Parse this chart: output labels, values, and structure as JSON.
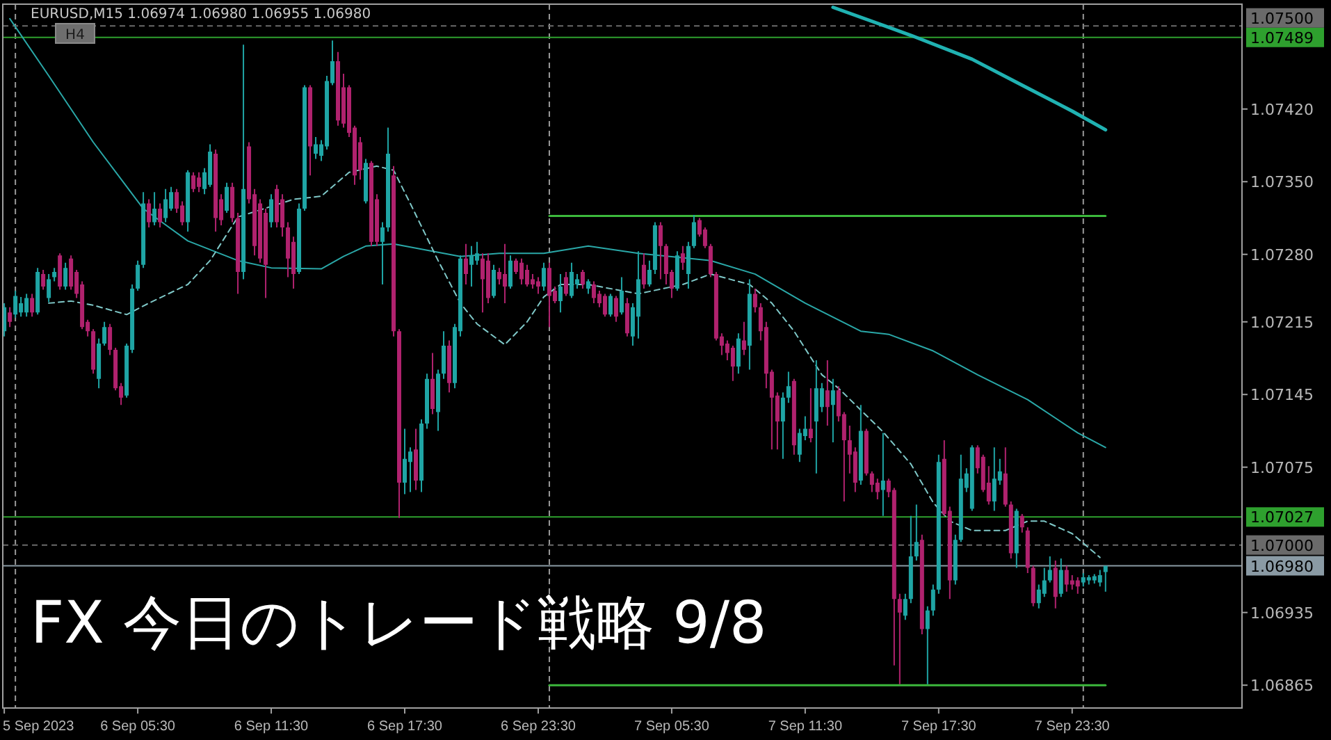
{
  "chart_data": {
    "type": "candlestick",
    "title": "FX 今日のトレード戦略 9/8",
    "subtitle": "EURUSD,M15  1.06974 1.06980 1.06955 1.06980",
    "annotations": [
      "H4"
    ],
    "x": [
      "2023-09-05T23:30",
      "2023-09-05T23:45",
      "2023-09-06T00:00",
      "2023-09-06T00:15",
      "2023-09-06T00:30",
      "2023-09-06T00:45",
      "2023-09-06T01:00",
      "2023-09-06T01:15",
      "2023-09-06T01:30",
      "2023-09-06T01:45",
      "2023-09-06T02:00",
      "2023-09-06T02:15",
      "2023-09-06T02:30",
      "2023-09-06T02:45",
      "2023-09-06T03:00",
      "2023-09-06T03:15",
      "2023-09-06T03:30",
      "2023-09-06T03:45",
      "2023-09-06T04:00",
      "2023-09-06T04:15",
      "2023-09-06T04:30",
      "2023-09-06T04:45",
      "2023-09-06T05:00",
      "2023-09-06T05:15",
      "2023-09-06T05:30",
      "2023-09-06T05:45",
      "2023-09-06T06:00",
      "2023-09-06T06:15",
      "2023-09-06T06:30",
      "2023-09-06T06:45",
      "2023-09-06T07:00",
      "2023-09-06T07:15",
      "2023-09-06T07:30",
      "2023-09-06T07:45",
      "2023-09-06T08:00",
      "2023-09-06T08:15",
      "2023-09-06T08:30",
      "2023-09-06T08:45",
      "2023-09-06T09:00",
      "2023-09-06T09:15",
      "2023-09-06T09:30",
      "2023-09-06T09:45",
      "2023-09-06T10:00",
      "2023-09-06T10:15",
      "2023-09-06T10:30",
      "2023-09-06T10:45",
      "2023-09-06T11:00",
      "2023-09-06T11:15",
      "2023-09-06T11:30",
      "2023-09-06T11:45",
      "2023-09-06T12:00",
      "2023-09-06T12:15",
      "2023-09-06T12:30",
      "2023-09-06T12:45",
      "2023-09-06T13:00",
      "2023-09-06T13:15",
      "2023-09-06T13:30",
      "2023-09-06T13:45",
      "2023-09-06T14:00",
      "2023-09-06T14:15",
      "2023-09-06T14:30",
      "2023-09-06T14:45",
      "2023-09-06T15:00",
      "2023-09-06T15:15",
      "2023-09-06T15:30",
      "2023-09-06T15:45",
      "2023-09-06T16:00",
      "2023-09-06T16:15",
      "2023-09-06T16:30",
      "2023-09-06T16:45",
      "2023-09-06T17:00",
      "2023-09-06T17:15",
      "2023-09-06T17:30",
      "2023-09-06T17:45",
      "2023-09-06T18:00",
      "2023-09-06T18:15",
      "2023-09-06T18:30",
      "2023-09-06T18:45",
      "2023-09-06T19:00",
      "2023-09-06T19:15",
      "2023-09-06T19:30",
      "2023-09-06T19:45",
      "2023-09-06T20:00",
      "2023-09-06T20:15",
      "2023-09-06T20:30",
      "2023-09-06T20:45",
      "2023-09-06T21:00",
      "2023-09-06T21:15",
      "2023-09-06T21:30",
      "2023-09-06T21:45",
      "2023-09-06T22:00",
      "2023-09-06T22:15",
      "2023-09-06T22:30",
      "2023-09-06T22:45",
      "2023-09-06T23:00",
      "2023-09-06T23:15",
      "2023-09-06T23:30",
      "2023-09-06T23:45",
      "2023-09-07T00:00",
      "2023-09-07T00:15",
      "2023-09-07T00:30",
      "2023-09-07T00:45",
      "2023-09-07T01:00",
      "2023-09-07T01:15",
      "2023-09-07T01:30",
      "2023-09-07T01:45",
      "2023-09-07T02:00",
      "2023-09-07T02:15",
      "2023-09-07T02:30",
      "2023-09-07T02:45",
      "2023-09-07T03:00",
      "2023-09-07T03:15",
      "2023-09-07T03:30",
      "2023-09-07T03:45",
      "2023-09-07T04:00",
      "2023-09-07T04:15",
      "2023-09-07T04:30",
      "2023-09-07T04:45",
      "2023-09-07T05:00",
      "2023-09-07T05:15",
      "2023-09-07T05:30",
      "2023-09-07T05:45",
      "2023-09-07T06:00",
      "2023-09-07T06:15",
      "2023-09-07T06:30",
      "2023-09-07T06:45",
      "2023-09-07T07:00",
      "2023-09-07T07:15",
      "2023-09-07T07:30",
      "2023-09-07T07:45",
      "2023-09-07T08:00",
      "2023-09-07T08:15",
      "2023-09-07T08:30",
      "2023-09-07T08:45",
      "2023-09-07T09:00",
      "2023-09-07T09:15",
      "2023-09-07T09:30",
      "2023-09-07T09:45",
      "2023-09-07T10:00",
      "2023-09-07T10:15",
      "2023-09-07T10:30",
      "2023-09-07T10:45",
      "2023-09-07T11:00",
      "2023-09-07T11:15",
      "2023-09-07T11:30",
      "2023-09-07T11:45",
      "2023-09-07T12:00",
      "2023-09-07T12:15",
      "2023-09-07T12:30",
      "2023-09-07T12:45",
      "2023-09-07T13:00",
      "2023-09-07T13:15",
      "2023-09-07T13:30",
      "2023-09-07T13:45",
      "2023-09-07T14:00",
      "2023-09-07T14:15",
      "2023-09-07T14:30",
      "2023-09-07T14:45",
      "2023-09-07T15:00",
      "2023-09-07T15:15",
      "2023-09-07T15:30",
      "2023-09-07T15:45",
      "2023-09-07T16:00",
      "2023-09-07T16:15",
      "2023-09-07T16:30",
      "2023-09-07T16:45",
      "2023-09-07T17:00",
      "2023-09-07T17:15",
      "2023-09-07T17:30",
      "2023-09-07T17:45",
      "2023-09-07T18:00",
      "2023-09-07T18:15",
      "2023-09-07T18:30",
      "2023-09-07T18:45",
      "2023-09-07T19:00",
      "2023-09-07T19:15",
      "2023-09-07T19:30",
      "2023-09-07T19:45",
      "2023-09-07T20:00",
      "2023-09-07T20:15",
      "2023-09-07T20:30",
      "2023-09-07T20:45",
      "2023-09-07T21:00",
      "2023-09-07T21:15",
      "2023-09-07T21:30",
      "2023-09-07T21:45",
      "2023-09-07T22:00",
      "2023-09-07T22:15",
      "2023-09-07T22:30",
      "2023-09-07T22:45",
      "2023-09-07T23:00",
      "2023-09-07T23:15",
      "2023-09-07T23:30",
      "2023-09-07T23:45",
      "2023-09-08T00:00",
      "2023-09-08T00:15",
      "2023-09-08T00:30",
      "2023-09-08T00:45",
      "2023-09-08T01:00"
    ],
    "ohlc": [
      [
        1.07206,
        1.07233,
        1.07201,
        1.07229
      ],
      [
        1.07224,
        1.07229,
        1.0721,
        1.07215
      ],
      [
        1.07222,
        1.07245,
        1.07219,
        1.0724
      ],
      [
        1.07224,
        1.07239,
        1.0722,
        1.07233
      ],
      [
        1.07224,
        1.07242,
        1.0722,
        1.07238
      ],
      [
        1.07238,
        1.07242,
        1.0722,
        1.07224
      ],
      [
        1.07224,
        1.07267,
        1.07222,
        1.07263
      ],
      [
        1.07261,
        1.07265,
        1.07246,
        1.07249
      ],
      [
        1.07238,
        1.07261,
        1.07234,
        1.07256
      ],
      [
        1.07258,
        1.07267,
        1.07254,
        1.07263
      ],
      [
        1.07279,
        1.07281,
        1.07246,
        1.07249
      ],
      [
        1.07249,
        1.07272,
        1.07246,
        1.07267
      ],
      [
        1.07276,
        1.07279,
        1.07246,
        1.07249
      ],
      [
        1.07263,
        1.07265,
        1.07238,
        1.07242
      ],
      [
        1.07251,
        1.07254,
        1.07208,
        1.0721
      ],
      [
        1.07215,
        1.07217,
        1.07201,
        1.07206
      ],
      [
        1.07206,
        1.07208,
        1.07165,
        1.07169
      ],
      [
        1.0716,
        1.07199,
        1.07151,
        1.07194
      ],
      [
        1.07194,
        1.07215,
        1.07192,
        1.0721
      ],
      [
        1.0721,
        1.07213,
        1.07183,
        1.07188
      ],
      [
        1.07188,
        1.0719,
        1.07149,
        1.07151
      ],
      [
        1.07153,
        1.07156,
        1.07135,
        1.07142
      ],
      [
        1.07144,
        1.07194,
        1.07142,
        1.07192
      ],
      [
        1.07188,
        1.07251,
        1.07185,
        1.07247
      ],
      [
        1.07247,
        1.07274,
        1.07245,
        1.0727
      ],
      [
        1.0727,
        1.0734,
        1.07267,
        1.07329
      ],
      [
        1.07329,
        1.07333,
        1.07306,
        1.07311
      ],
      [
        1.07311,
        1.0734,
        1.07308,
        1.07324
      ],
      [
        1.07324,
        1.07329,
        1.07306,
        1.07311
      ],
      [
        1.07315,
        1.07343,
        1.07311,
        1.07333
      ],
      [
        1.07324,
        1.07345,
        1.07322,
        1.0734
      ],
      [
        1.0734,
        1.07343,
        1.0732,
        1.07324
      ],
      [
        1.07327,
        1.07331,
        1.07308,
        1.07311
      ],
      [
        1.07311,
        1.07361,
        1.07302,
        1.07359
      ],
      [
        1.07356,
        1.07359,
        1.0734,
        1.07343
      ],
      [
        1.07354,
        1.07359,
        1.0734,
        1.07345
      ],
      [
        1.07343,
        1.07363,
        1.07338,
        1.07359
      ],
      [
        1.07347,
        1.07386,
        1.07345,
        1.07379
      ],
      [
        1.07377,
        1.07381,
        1.07302,
        1.07315
      ],
      [
        1.07333,
        1.07338,
        1.07308,
        1.07313
      ],
      [
        1.07322,
        1.07349,
        1.0732,
        1.07345
      ],
      [
        1.07345,
        1.07349,
        1.07311,
        1.07315
      ],
      [
        1.07315,
        1.0732,
        1.07242,
        1.07263
      ],
      [
        1.07263,
        1.07482,
        1.07256,
        1.07343
      ],
      [
        1.07384,
        1.07388,
        1.07329,
        1.07333
      ],
      [
        1.07338,
        1.07343,
        1.07279,
        1.07288
      ],
      [
        1.07329,
        1.07333,
        1.07272,
        1.07276
      ],
      [
        1.0732,
        1.07324,
        1.07238,
        1.0727
      ],
      [
        1.07311,
        1.07338,
        1.07306,
        1.07333
      ],
      [
        1.07343,
        1.07347,
        1.07306,
        1.07311
      ],
      [
        1.07333,
        1.07338,
        1.07297,
        1.07306
      ],
      [
        1.07306,
        1.07311,
        1.07258,
        1.07276
      ],
      [
        1.07292,
        1.07297,
        1.07247,
        1.07261
      ],
      [
        1.07263,
        1.07329,
        1.07261,
        1.07324
      ],
      [
        1.07324,
        1.07443,
        1.07322,
        1.07441
      ],
      [
        1.07441,
        1.07443,
        1.07356,
        1.07384
      ],
      [
        1.07377,
        1.07393,
        1.07372,
        1.07386
      ],
      [
        1.07375,
        1.0739,
        1.0737,
        1.07386
      ],
      [
        1.07384,
        1.07452,
        1.07381,
        1.07447
      ],
      [
        1.07445,
        1.07486,
        1.07443,
        1.07466
      ],
      [
        1.07466,
        1.07475,
        1.07404,
        1.07409
      ],
      [
        1.07441,
        1.07454,
        1.07402,
        1.07406
      ],
      [
        1.07441,
        1.07443,
        1.07393,
        1.07397
      ],
      [
        1.07402,
        1.07404,
        1.07347,
        1.07356
      ],
      [
        1.07388,
        1.07393,
        1.07352,
        1.07361
      ],
      [
        1.07331,
        1.07372,
        1.07329,
        1.07368
      ],
      [
        1.07368,
        1.0737,
        1.07288,
        1.07292
      ],
      [
        1.07333,
        1.07338,
        1.07288,
        1.07292
      ],
      [
        1.07292,
        1.07311,
        1.07251,
        1.07306
      ],
      [
        1.07306,
        1.07402,
        1.07302,
        1.07377
      ],
      [
        1.07356,
        1.07365,
        1.07201,
        1.07206
      ],
      [
        1.07206,
        1.07208,
        1.07026,
        1.0706
      ],
      [
        1.0706,
        1.07112,
        1.07049,
        1.07083
      ],
      [
        1.0708,
        1.07094,
        1.07051,
        1.0709
      ],
      [
        1.07092,
        1.07112,
        1.07053,
        1.07062
      ],
      [
        1.07062,
        1.07121,
        1.07051,
        1.07117
      ],
      [
        1.07117,
        1.07165,
        1.07112,
        1.0716
      ],
      [
        1.0716,
        1.07185,
        1.07126,
        1.07131
      ],
      [
        1.07128,
        1.07169,
        1.0711,
        1.07165
      ],
      [
        1.07165,
        1.07206,
        1.0716,
        1.07192
      ],
      [
        1.07192,
        1.07197,
        1.07147,
        1.07156
      ],
      [
        1.07156,
        1.07213,
        1.07151,
        1.0721
      ],
      [
        1.07206,
        1.07279,
        1.07201,
        1.07276
      ],
      [
        1.07276,
        1.0729,
        1.07251,
        1.07261
      ],
      [
        1.0727,
        1.07288,
        1.07249,
        1.07279
      ],
      [
        1.07274,
        1.07292,
        1.0727,
        1.07281
      ],
      [
        1.07276,
        1.07281,
        1.07224,
        1.07256
      ],
      [
        1.07274,
        1.07281,
        1.07233,
        1.07238
      ],
      [
        1.0724,
        1.0727,
        1.07238,
        1.07265
      ],
      [
        1.07263,
        1.07267,
        1.07251,
        1.07256
      ],
      [
        1.07261,
        1.0729,
        1.07233,
        1.07249
      ],
      [
        1.07249,
        1.07279,
        1.07247,
        1.07274
      ],
      [
        1.07274,
        1.07276,
        1.07261,
        1.07263
      ],
      [
        1.07272,
        1.07276,
        1.07251,
        1.07256
      ],
      [
        1.07265,
        1.0727,
        1.07249,
        1.07251
      ],
      [
        1.07256,
        1.07261,
        1.07247,
        1.07251
      ],
      [
        1.07254,
        1.07258,
        1.07242,
        1.07249
      ],
      [
        1.07249,
        1.07272,
        1.07245,
        1.07267
      ],
      [
        1.07267,
        1.07272,
        1.0721,
        1.0724
      ],
      [
        1.07245,
        1.07249,
        1.07233,
        1.07235
      ],
      [
        1.07235,
        1.07261,
        1.07224,
        1.07249
      ],
      [
        1.07258,
        1.07263,
        1.0724,
        1.07242
      ],
      [
        1.0724,
        1.07272,
        1.07238,
        1.07263
      ],
      [
        1.07251,
        1.07261,
        1.07247,
        1.07256
      ],
      [
        1.07263,
        1.07265,
        1.07247,
        1.07251
      ],
      [
        1.07247,
        1.07256,
        1.07242,
        1.07254
      ],
      [
        1.07251,
        1.07254,
        1.07233,
        1.07238
      ],
      [
        1.07242,
        1.07245,
        1.07229,
        1.07233
      ],
      [
        1.0724,
        1.07242,
        1.0722,
        1.07222
      ],
      [
        1.07222,
        1.07242,
        1.0722,
        1.0724
      ],
      [
        1.07238,
        1.0724,
        1.07215,
        1.0722
      ],
      [
        1.07224,
        1.07258,
        1.07222,
        1.07245
      ],
      [
        1.07233,
        1.07238,
        1.07201,
        1.07204
      ],
      [
        1.07201,
        1.07233,
        1.07192,
        1.07229
      ],
      [
        1.0722,
        1.07283,
        1.07199,
        1.07256
      ],
      [
        1.0727,
        1.07281,
        1.07247,
        1.07251
      ],
      [
        1.07251,
        1.07274,
        1.07249,
        1.07265
      ],
      [
        1.07265,
        1.07311,
        1.07261,
        1.07308
      ],
      [
        1.07308,
        1.07311,
        1.07256,
        1.07288
      ],
      [
        1.07288,
        1.0729,
        1.07251,
        1.07261
      ],
      [
        1.07263,
        1.07265,
        1.07238,
        1.07247
      ],
      [
        1.07247,
        1.07283,
        1.07245,
        1.07279
      ],
      [
        1.07281,
        1.07288,
        1.07265,
        1.07272
      ],
      [
        1.07261,
        1.07292,
        1.07247,
        1.07288
      ],
      [
        1.07288,
        1.07318,
        1.07286,
        1.07311
      ],
      [
        1.07313,
        1.07315,
        1.07297,
        1.07299
      ],
      [
        1.07304,
        1.07306,
        1.07286,
        1.07288
      ],
      [
        1.07288,
        1.0729,
        1.07258,
        1.07261
      ],
      [
        1.07261,
        1.07263,
        1.07197,
        1.07199
      ],
      [
        1.07201,
        1.07204,
        1.07183,
        1.07192
      ],
      [
        1.07194,
        1.07197,
        1.07178,
        1.07185
      ],
      [
        1.0719,
        1.07192,
        1.07158,
        1.07172
      ],
      [
        1.07172,
        1.07204,
        1.07165,
        1.07199
      ],
      [
        1.07197,
        1.07215,
        1.07183,
        1.07188
      ],
      [
        1.07192,
        1.07256,
        1.07169,
        1.07242
      ],
      [
        1.07242,
        1.07247,
        1.07224,
        1.07229
      ],
      [
        1.07229,
        1.07233,
        1.07197,
        1.07206
      ],
      [
        1.0721,
        1.07215,
        1.07151,
        1.07165
      ],
      [
        1.07167,
        1.07169,
        1.07092,
        1.07142
      ],
      [
        1.07144,
        1.07147,
        1.07092,
        1.07119
      ],
      [
        1.07119,
        1.07147,
        1.07083,
        1.07142
      ],
      [
        1.07142,
        1.07167,
        1.07137,
        1.07153
      ],
      [
        1.07158,
        1.0716,
        1.07087,
        1.07096
      ],
      [
        1.07087,
        1.07112,
        1.0708,
        1.07108
      ],
      [
        1.07105,
        1.07124,
        1.07101,
        1.07112
      ],
      [
        1.07112,
        1.07151,
        1.07099,
        1.07103
      ],
      [
        1.07119,
        1.07178,
        1.07069,
        1.07151
      ],
      [
        1.07133,
        1.07156,
        1.07128,
        1.07151
      ],
      [
        1.07149,
        1.07178,
        1.07115,
        1.07133
      ],
      [
        1.07135,
        1.0716,
        1.07099,
        1.07149
      ],
      [
        1.07149,
        1.07153,
        1.07119,
        1.07124
      ],
      [
        1.07126,
        1.07128,
        1.07042,
        1.07101
      ],
      [
        1.07101,
        1.07115,
        1.07069,
        1.07087
      ],
      [
        1.0709,
        1.07094,
        1.07051,
        1.0706
      ],
      [
        1.07062,
        1.07135,
        1.07058,
        1.0711
      ],
      [
        1.0711,
        1.07112,
        1.07067,
        1.07069
      ],
      [
        1.07069,
        1.07071,
        1.07051,
        1.07058
      ],
      [
        1.0706,
        1.07064,
        1.07044,
        1.07051
      ],
      [
        1.07053,
        1.07108,
        1.07028,
        1.07062
      ],
      [
        1.07062,
        1.07064,
        1.07046,
        1.07051
      ],
      [
        1.07053,
        1.07055,
        1.06884,
        1.06948
      ],
      [
        1.06948,
        1.06953,
        1.06866,
        1.06935
      ],
      [
        1.06932,
        1.06953,
        1.06928,
        1.06948
      ],
      [
        1.06948,
        1.07028,
        1.06944,
        1.06989
      ],
      [
        1.06989,
        1.07039,
        1.06985,
        1.07003
      ],
      [
        1.07005,
        1.0701,
        1.06914,
        1.06919
      ],
      [
        1.06919,
        1.06941,
        1.06866,
        1.06937
      ],
      [
        1.06937,
        1.06962,
        1.06932,
        1.06957
      ],
      [
        1.06957,
        1.07087,
        1.06953,
        1.0708
      ],
      [
        1.07083,
        1.07101,
        1.07028,
        1.0703
      ],
      [
        1.07033,
        1.07037,
        1.06948,
        1.06966
      ],
      [
        1.06966,
        1.0701,
        1.06962,
        1.07005
      ],
      [
        1.07005,
        1.07087,
        1.07003,
        1.07064
      ],
      [
        1.07055,
        1.07074,
        1.07051,
        1.07069
      ],
      [
        1.07035,
        1.07096,
        1.07033,
        1.07094
      ],
      [
        1.07094,
        1.07096,
        1.07069,
        1.07074
      ],
      [
        1.07085,
        1.07087,
        1.07051,
        1.07053
      ],
      [
        1.0706,
        1.07076,
        1.07039,
        1.07042
      ],
      [
        1.07042,
        1.07094,
        1.07033,
        1.07064
      ],
      [
        1.07062,
        1.07083,
        1.07058,
        1.07071
      ],
      [
        1.07069,
        1.07094,
        1.07037,
        1.07039
      ],
      [
        1.07039,
        1.07042,
        1.06987,
        1.06992
      ],
      [
        1.06992,
        1.07035,
        1.06978,
        1.07033
      ],
      [
        1.07028,
        1.0703,
        1.07012,
        1.07017
      ],
      [
        1.07014,
        1.07017,
        1.06973,
        1.06978
      ],
      [
        1.06978,
        1.0698,
        1.06941,
        1.06944
      ],
      [
        1.06944,
        1.06962,
        1.06939,
        1.06957
      ],
      [
        1.06953,
        1.06978,
        1.0695,
        1.06966
      ],
      [
        1.06966,
        1.06989,
        1.06964,
        1.06976
      ],
      [
        1.06978,
        1.06985,
        1.06939,
        1.0695
      ],
      [
        1.06953,
        1.06987,
        1.0695,
        1.06976
      ],
      [
        1.06976,
        1.0698,
        1.06955,
        1.06962
      ],
      [
        1.06966,
        1.06971,
        1.06957,
        1.06962
      ],
      [
        1.06966,
        1.06969,
        1.06953,
        1.0696
      ],
      [
        1.06964,
        1.06973,
        1.0696,
        1.06969
      ],
      [
        1.06966,
        1.06971,
        1.06962,
        1.06969
      ],
      [
        1.06966,
        1.06972,
        1.06963,
        1.0697
      ],
      [
        1.06964,
        1.06976,
        1.0696,
        1.06971
      ],
      [
        1.06974,
        1.0698,
        1.06955,
        1.0698
      ]
    ],
    "series": [
      {
        "type": "line",
        "color": "#20b2b2",
        "x": [
          "2023-09-07T12:45",
          "2023-09-07T16:15",
          "2023-09-07T19:00",
          "2023-09-07T21:15",
          "2023-09-07T23:30",
          "2023-09-08T01:00"
        ],
        "values": [
          1.07518,
          1.07491,
          1.07468,
          1.07443,
          1.07418,
          1.074
        ]
      },
      {
        "type": "line",
        "color": "#2aa8a8",
        "x": [
          "2023-09-05T23:45",
          "2023-09-06T01:30",
          "2023-09-06T03:30",
          "2023-09-06T05:45",
          "2023-09-06T07:45",
          "2023-09-06T10:00",
          "2023-09-06T11:30",
          "2023-09-06T13:45",
          "2023-09-06T14:45",
          "2023-09-06T15:45",
          "2023-09-06T17:00",
          "2023-09-06T18:30",
          "2023-09-06T20:00",
          "2023-09-06T21:45",
          "2023-09-06T23:45",
          "2023-09-07T01:45",
          "2023-09-07T04:00",
          "2023-09-07T07:15",
          "2023-09-07T09:15",
          "2023-09-07T11:30",
          "2023-09-07T14:00",
          "2023-09-07T15:15",
          "2023-09-07T17:15",
          "2023-09-07T19:15",
          "2023-09-07T21:30",
          "2023-09-07T23:45",
          "2023-09-08T01:00"
        ],
        "values": [
          1.07507,
          1.07452,
          1.07388,
          1.07324,
          1.07293,
          1.07274,
          1.07267,
          1.07266,
          1.07278,
          1.07288,
          1.0729,
          1.07284,
          1.07278,
          1.07281,
          1.07281,
          1.07288,
          1.07281,
          1.07274,
          1.07261,
          1.07233,
          1.07206,
          1.07203,
          1.07187,
          1.07164,
          1.0714,
          1.07108,
          1.07094
        ]
      },
      {
        "type": "line",
        "color": "#7fc8c8",
        "line_style": "dashed",
        "x": [
          "2023-09-06T01:30",
          "2023-09-06T02:30",
          "2023-09-06T03:30",
          "2023-09-06T05:00",
          "2023-09-06T06:00",
          "2023-09-06T07:45",
          "2023-09-06T08:45",
          "2023-09-06T10:00",
          "2023-09-06T12:30",
          "2023-09-06T13:45",
          "2023-09-06T15:00",
          "2023-09-06T16:15",
          "2023-09-06T17:00",
          "2023-09-06T17:45",
          "2023-09-06T19:00",
          "2023-09-06T20:00",
          "2023-09-06T20:45",
          "2023-09-06T22:00",
          "2023-09-06T23:00",
          "2023-09-06T23:45",
          "2023-09-07T00:30",
          "2023-09-07T01:45",
          "2023-09-07T04:00",
          "2023-09-07T06:00",
          "2023-09-07T07:15",
          "2023-09-07T09:00",
          "2023-09-07T10:00",
          "2023-09-07T11:00",
          "2023-09-07T12:15",
          "2023-09-07T13:00",
          "2023-09-07T15:00",
          "2023-09-07T16:15",
          "2023-09-07T17:15",
          "2023-09-07T18:00",
          "2023-09-07T19:00",
          "2023-09-07T20:30",
          "2023-09-07T21:30",
          "2023-09-07T22:15",
          "2023-09-07T23:30",
          "2023-09-08T00:45"
        ],
        "values": [
          1.07233,
          1.07235,
          1.07231,
          1.07222,
          1.07233,
          1.07251,
          1.07274,
          1.07316,
          1.07333,
          1.07336,
          1.07359,
          1.07365,
          1.07361,
          1.07329,
          1.07274,
          1.07233,
          1.07213,
          1.07193,
          1.07215,
          1.07239,
          1.07251,
          1.07251,
          1.07242,
          1.07251,
          1.07261,
          1.07251,
          1.07233,
          1.07206,
          1.07164,
          1.07151,
          1.07109,
          1.07078,
          1.07041,
          1.07023,
          1.07014,
          1.07014,
          1.07023,
          1.07023,
          1.07011,
          1.06988
        ]
      },
      {
        "type": "line",
        "color": "#3cb83c",
        "x": [
          "2023-09-07T00:00",
          "2023-09-08T01:00"
        ],
        "values": [
          1.07317,
          1.07317
        ]
      },
      {
        "type": "line",
        "color": "#3cb83c",
        "x": [
          "2023-09-07T00:00",
          "2023-09-08T01:00"
        ],
        "values": [
          1.06865,
          1.06865
        ]
      }
    ],
    "xlim": [
      "2023-09-05T23:26",
      "2023-09-08T07:08"
    ],
    "ylim": [
      1.06843,
      1.07521
    ],
    "xticks": [
      {
        "value": "2023-09-05T23:30",
        "label": "5 Sep 2023"
      },
      {
        "value": "2023-09-06T05:30",
        "label": "6 Sep 05:30"
      },
      {
        "value": "2023-09-06T11:30",
        "label": "6 Sep 11:30"
      },
      {
        "value": "2023-09-06T17:30",
        "label": "6 Sep 17:30"
      },
      {
        "value": "2023-09-06T23:30",
        "label": "6 Sep 23:30"
      },
      {
        "value": "2023-09-07T05:30",
        "label": "7 Sep 05:30"
      },
      {
        "value": "2023-09-07T11:30",
        "label": "7 Sep 11:30"
      },
      {
        "value": "2023-09-07T17:30",
        "label": "7 Sep 17:30"
      },
      {
        "value": "2023-09-07T23:30",
        "label": "7 Sep 23:30"
      }
    ],
    "yticks": [
      {
        "value": 1.0742,
        "label": "1.07420"
      },
      {
        "value": 1.0735,
        "label": "1.07350"
      },
      {
        "value": 1.0728,
        "label": "1.07280"
      },
      {
        "value": 1.07215,
        "label": "1.07215"
      },
      {
        "value": 1.07145,
        "label": "1.07145"
      },
      {
        "value": 1.07075,
        "label": "1.07075"
      },
      {
        "value": 1.06935,
        "label": "1.06935"
      },
      {
        "value": 1.06865,
        "label": "1.06865"
      }
    ],
    "ref_lines": [
      {
        "axis": "x",
        "value": "2023-09-06T00:00",
        "color": "#9a9a9a",
        "line_style": "dashed"
      },
      {
        "axis": "x",
        "value": "2023-09-07T00:00",
        "color": "#9a9a9a",
        "line_style": "dashed"
      },
      {
        "axis": "x",
        "value": "2023-09-08T00:00",
        "color": "#9a9a9a",
        "line_style": "dashed"
      },
      {
        "axis": "y",
        "value": 1.075,
        "label": "1.07500",
        "color": "#6a6a6a",
        "line_style": "dashed"
      },
      {
        "axis": "y",
        "value": 1.07489,
        "label": "1.07489",
        "color": "#2ea02e",
        "line_style": "solid"
      },
      {
        "axis": "y",
        "value": 1.07027,
        "label": "1.07027",
        "color": "#2ea02e",
        "line_style": "solid"
      },
      {
        "axis": "y",
        "value": 1.07,
        "label": "1.07000",
        "color": "#6a6a6a",
        "line_style": "dashed"
      },
      {
        "axis": "y",
        "value": 1.0698,
        "label": "1.06980",
        "color": "#8a9aa4",
        "line_style": "solid"
      }
    ]
  }
}
